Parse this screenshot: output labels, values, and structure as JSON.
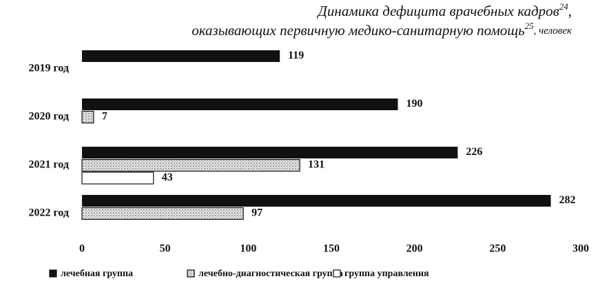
{
  "chart_data": {
    "type": "bar",
    "orientation": "horizontal",
    "title_lines": [
      [
        "Динамика дефицита врачебных кадров",
        "24",
        ","
      ],
      [
        "оказывающих первичную медико-санитарную помощь",
        "25",
        ", человек"
      ]
    ],
    "categories": [
      "2019 год",
      "2020 год",
      "2021 год",
      "2022 год"
    ],
    "series": [
      {
        "name": "лечебная группа",
        "color": "#111111",
        "values": [
          119,
          190,
          226,
          282
        ]
      },
      {
        "name": "лечебно-диагностическая группа",
        "color": "#d4d4d4",
        "values": [
          null,
          7,
          131,
          97
        ]
      },
      {
        "name": "группа управления",
        "color": "#ffffff",
        "values": [
          null,
          null,
          43,
          null
        ]
      }
    ],
    "xlim": [
      0,
      300
    ],
    "xticks": [
      0,
      50,
      100,
      150,
      200,
      250,
      300
    ]
  }
}
